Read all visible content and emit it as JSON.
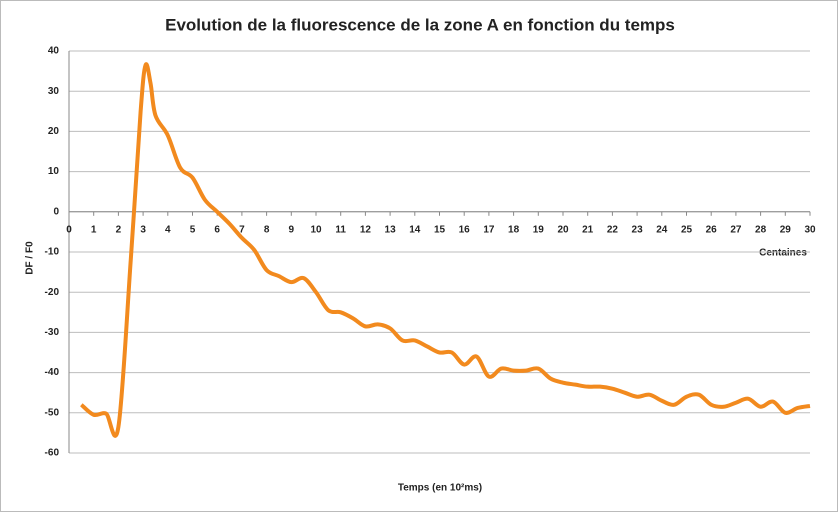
{
  "chart_data": {
    "type": "line",
    "title": "Evolution de la fluorescence de la zone A en fonction du temps",
    "x_label": "Temps (en 10²ms)",
    "x_unit_label": "Centaines",
    "y_label": "DF / F0",
    "xlim": [
      0,
      30
    ],
    "xticks": [
      0,
      1,
      2,
      3,
      4,
      5,
      6,
      7,
      8,
      9,
      10,
      11,
      12,
      13,
      14,
      15,
      16,
      17,
      18,
      19,
      20,
      21,
      22,
      23,
      24,
      25,
      26,
      27,
      28,
      29,
      30
    ],
    "ylim": [
      -60,
      40
    ],
    "yticks": [
      -60,
      -50,
      -40,
      -30,
      -20,
      -10,
      0,
      10,
      20,
      30,
      40
    ],
    "grid": true,
    "series": [
      {
        "name": "zone A",
        "color": "#f28a1e",
        "x": [
          0.5,
          1,
          1.5,
          2,
          2.5,
          2.9,
          3.1,
          3.3,
          3.5,
          4,
          4.5,
          5,
          5.5,
          6,
          6.5,
          7,
          7.5,
          8,
          8.5,
          9,
          9.5,
          10,
          10.5,
          11,
          11.5,
          12,
          12.5,
          13,
          13.5,
          14,
          14.5,
          15,
          15.5,
          16,
          16.5,
          17,
          17.5,
          18,
          18.5,
          19,
          19.5,
          20,
          20.5,
          21,
          21.5,
          22,
          22.5,
          23,
          23.5,
          24,
          24.5,
          25,
          25.5,
          26,
          26.5,
          27,
          27.5,
          28,
          28.5,
          29,
          29.5,
          30
        ],
        "values": [
          -48,
          -50.5,
          -50.2,
          -53.5,
          -12,
          25,
          36.5,
          32,
          24,
          19,
          11,
          8.5,
          3,
          0,
          -3,
          -6.5,
          -9.5,
          -14.5,
          -16,
          -17.5,
          -16.5,
          -20,
          -24.5,
          -25,
          -26.5,
          -28.5,
          -28,
          -29,
          -32,
          -32,
          -33.5,
          -35,
          -35,
          -38,
          -36,
          -41,
          -39,
          -39.5,
          -39.5,
          -39,
          -41.5,
          -42.5,
          -43,
          -43.5,
          -43.5,
          -44,
          -45,
          -46,
          -45.5,
          -47,
          -48,
          -46,
          -45.5,
          -48,
          -48.5,
          -47.5,
          -46.5,
          -48.5,
          -47.2,
          -50,
          -48.8,
          -48.3
        ]
      }
    ]
  }
}
